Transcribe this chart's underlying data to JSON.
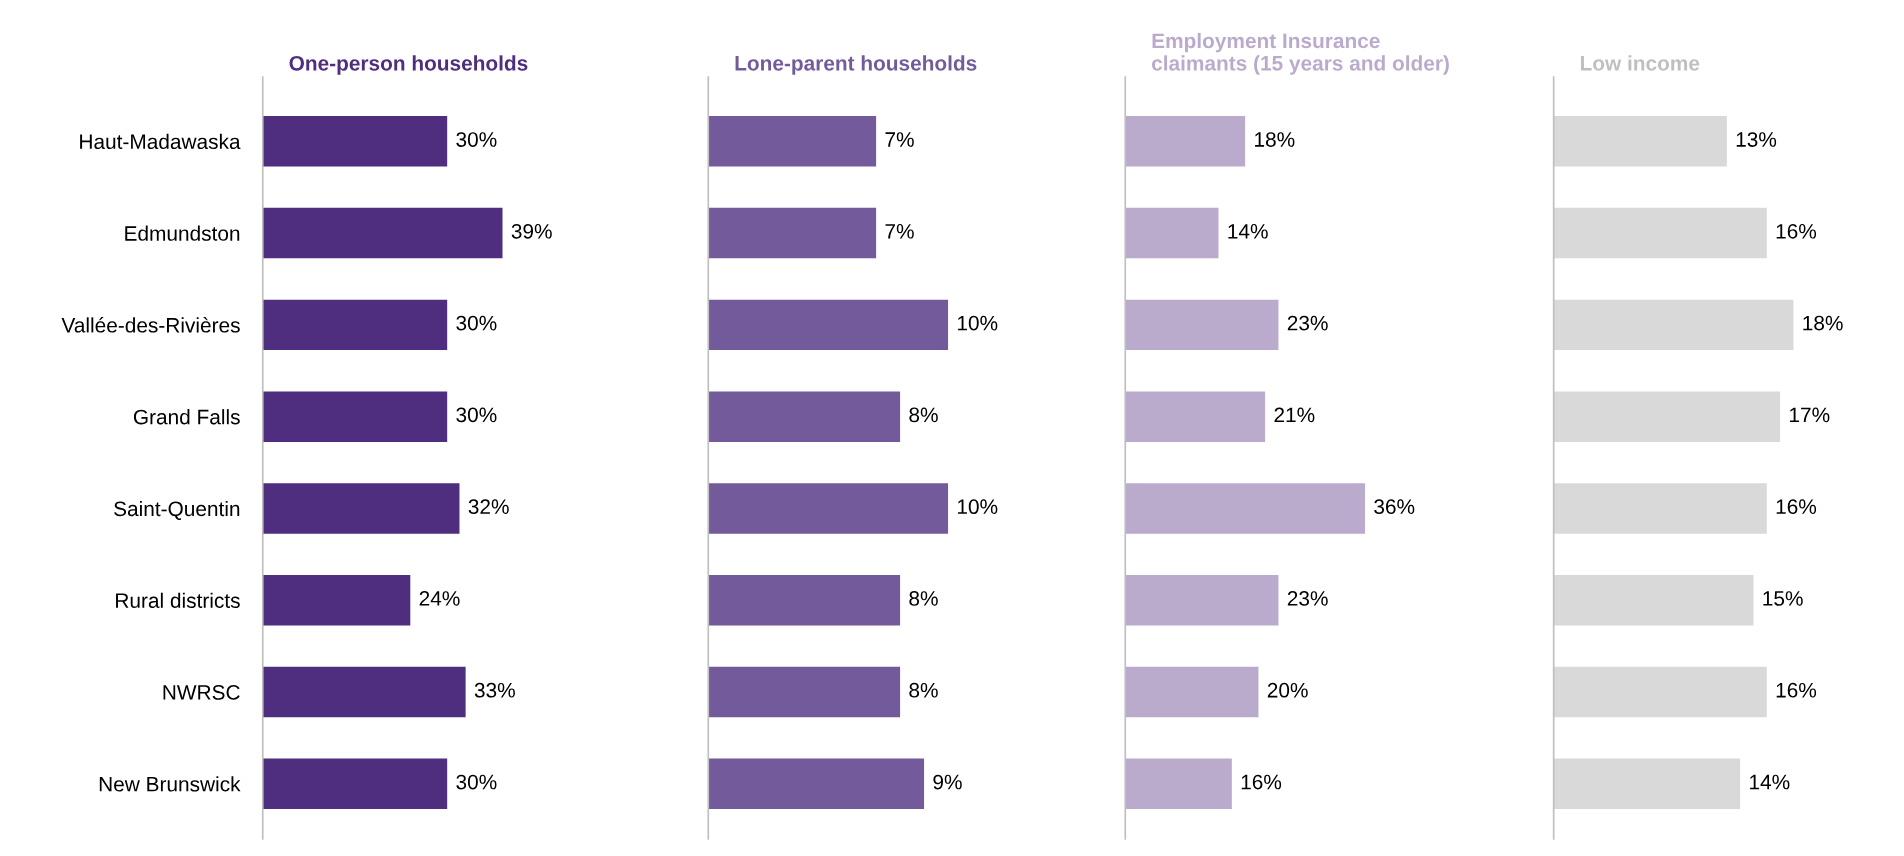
{
  "chart_data": [
    {
      "type": "bar",
      "orientation": "horizontal",
      "title": "One-person households",
      "tick_labels": "y",
      "categories": [
        "Haut-Madawaska",
        "Edmundston",
        "Vallée-des-Rivières",
        "Grand Falls",
        "Saint-Quentin",
        "Rural districts",
        "NWRSC",
        "New Brunswick"
      ],
      "series": [
        {
          "color": "#4f2d7f",
          "values": [
            30,
            39,
            30,
            30,
            32,
            24,
            33,
            30
          ],
          "value_labels": [
            "30%",
            "39%",
            "30%",
            "30%",
            "32%",
            "24%",
            "33%",
            "30%"
          ]
        }
      ]
    },
    {
      "type": "bar",
      "orientation": "horizontal",
      "title": "Lone-parent households",
      "tick_labels": false,
      "categories": [
        null,
        null,
        null,
        null,
        null,
        null,
        null,
        null
      ],
      "series": [
        {
          "color": "#735a9a",
          "values": [
            7,
            7,
            10,
            8,
            10,
            8,
            8,
            9
          ],
          "value_labels": [
            "7%",
            "7%",
            "10%",
            "8%",
            "10%",
            "8%",
            "8%",
            "9%"
          ]
        }
      ]
    },
    {
      "type": "bar",
      "orientation": "horizontal",
      "title": "Employment Insurance claimants (15 years and older)",
      "tick_labels": false,
      "categories": [
        null,
        null,
        null,
        null,
        null,
        null,
        null,
        null
      ],
      "series": [
        {
          "color": "#baabcc",
          "values": [
            18,
            14,
            23,
            21,
            36,
            23,
            20,
            16
          ],
          "value_labels": [
            "18%",
            "14%",
            "23%",
            "21%",
            "36%",
            "23%",
            "20%",
            "16%"
          ]
        }
      ]
    },
    {
      "type": "bar",
      "orientation": "horizontal",
      "title": "Low income",
      "tick_labels": false,
      "categories": [
        null,
        null,
        null,
        null,
        null,
        null,
        null,
        null
      ],
      "series": [
        {
          "color": "#d9d9d9",
          "values": [
            13,
            16,
            18,
            17,
            16,
            15,
            16,
            14
          ],
          "value_labels": [
            "13%",
            "16%",
            "18%",
            "17%",
            "16%",
            "15%",
            "16%",
            "14%"
          ]
        }
      ]
    }
  ]
}
